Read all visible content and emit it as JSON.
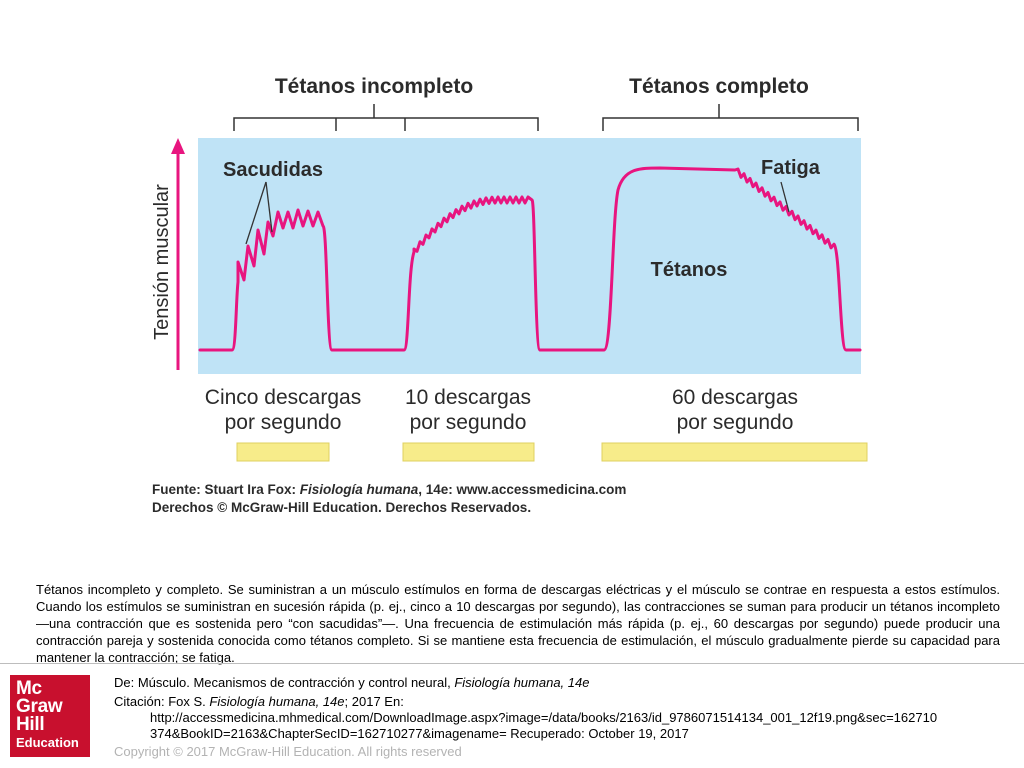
{
  "figure": {
    "top_labels": {
      "incomplete": "Tétanos incompleto",
      "complete": "Tétanos completo"
    },
    "y_axis_label": "Tensión muscular",
    "annotations": {
      "twitches": "Sacudidas",
      "fatigue": "Fatiga",
      "tetanus": "Tétanos"
    },
    "stimulus_labels": [
      {
        "line1": "Cinco descargas",
        "line2": "por segundo"
      },
      {
        "line1": "10 descargas",
        "line2": "por segundo"
      },
      {
        "line1": "60 descargas",
        "line2": "por segundo"
      }
    ],
    "source_line1": {
      "prefix": "Fuente: Stuart Ira Fox: ",
      "book": "Fisiología humana",
      "suffix": ", 14e: www.accessmedicina.com"
    },
    "source_line2": "Derechos © McGraw-Hill Education. Derechos Reservados.",
    "colors": {
      "panel": "#bfe3f6",
      "trace": "#e8157f",
      "arrow": "#e8157f",
      "stimulus_bar": "#f7ec8a",
      "stimulus_bar_border": "#dfd060"
    }
  },
  "caption": "Tétanos incompleto y completo. Se suministran a un músculo estímulos en forma de descargas eléctricas y el músculo se contrae en respuesta a estos estímulos. Cuando los estímulos se suministran en sucesión rápida (p. ej., cinco a 10 descargas por segundo), las contracciones se suman para producir un tétanos incompleto —una contracción que es sostenida pero “con sacudidas”—. Una frecuencia de estimulación más rápida (p. ej., 60 descargas por segundo) puede producir una contracción pareja y sostenida conocida como tétanos completo. Si se mantiene esta frecuencia de estimulación, el músculo gradualmente pierde su capacidad para mantener la contracción; se fatiga.",
  "logo": {
    "line1": "Mc",
    "line2": "Graw",
    "line3": "Hill",
    "line4": "Education",
    "color": "#c8102e"
  },
  "footer": {
    "from_prefix": "De: Músculo. Mecanismos de contracción y control neural, ",
    "from_book": "Fisiología humana, 14e",
    "citation_prefix": "Citación: Fox S. ",
    "citation_book": "Fisiología humana, 14e",
    "citation_suffix": "; 2017 En:",
    "url_line1": "http://accessmedicina.mhmedical.com/DownloadImage.aspx?image=/data/books/2163/id_9786071514134_001_12f19.png&sec=162710",
    "url_line2": "374&BookID=2163&ChapterSecID=162710277&imagename= Recuperado: October 19, 2017",
    "copyright": "Copyright © 2017 McGraw-Hill Education. All rights reserved"
  }
}
